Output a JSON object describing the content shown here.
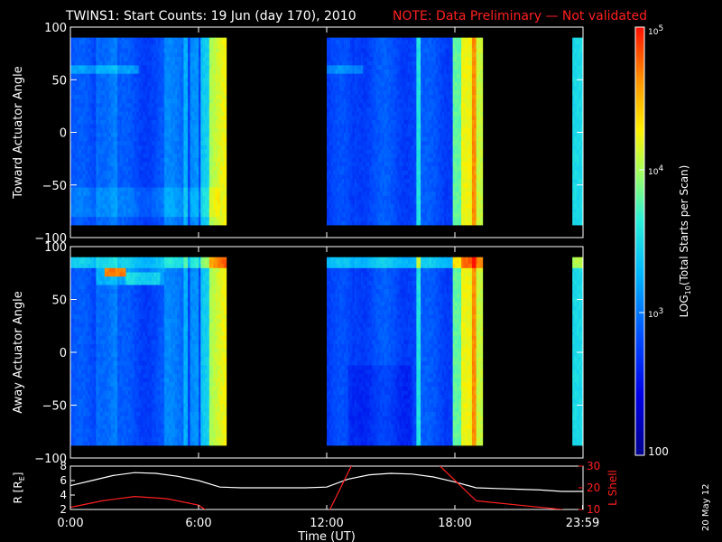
{
  "header": {
    "title": "TWINS1: Start Counts: 19 Jun (day 170), 2010",
    "note": "NOTE: Data Preliminary — Not validated",
    "title_color": "#ffffff",
    "note_color": "#ff2020"
  },
  "side_stamp": "20 May 12",
  "chart_data": [
    {
      "type": "heatmap",
      "name": "toward",
      "ylabel": "Toward Actuator Angle",
      "ylim": [
        -100,
        100
      ],
      "yticks": [
        "100",
        "50",
        "0",
        "−50",
        "−100"
      ],
      "x_unit": "hours UT",
      "xlim": [
        0,
        24
      ],
      "data_coverage_hours": [
        [
          0,
          7.3
        ],
        [
          12,
          19.3
        ],
        [
          23.5,
          24
        ]
      ],
      "angle_range": [
        -88,
        90
      ],
      "colorscale": "rainbow-log"
    },
    {
      "type": "heatmap",
      "name": "away",
      "ylabel": "Away Actuator Angle",
      "ylim": [
        -100,
        100
      ],
      "yticks": [
        "100",
        "50",
        "0",
        "−50",
        "−100"
      ],
      "x_unit": "hours UT",
      "xlim": [
        0,
        24
      ],
      "data_coverage_hours": [
        [
          0,
          7.3
        ],
        [
          12,
          19.3
        ],
        [
          23.5,
          24
        ]
      ],
      "angle_range": [
        -88,
        90
      ],
      "colorscale": "rainbow-log"
    },
    {
      "type": "line",
      "name": "orbit",
      "ylabel_left": "R [R",
      "ylabel_left_sub": "E",
      "ylabel_left_end": "]",
      "ylabel_right": "L Shell",
      "ylim_left": [
        2,
        8
      ],
      "ylim_right": [
        10,
        30
      ],
      "yticks_left": [
        "8",
        "6",
        "4",
        "2"
      ],
      "yticks_right": [
        "30",
        "20",
        "10"
      ],
      "xlim": [
        0,
        24
      ],
      "xtick_labels": [
        "0:00",
        "6:00",
        "12:00",
        "18:00",
        "23:59"
      ],
      "xtick_values": [
        0,
        6,
        12,
        18,
        23.98
      ],
      "xlabel": "Time (UT)",
      "series": [
        {
          "color": "#ffffff",
          "x": [
            0,
            1,
            2,
            3,
            4,
            5,
            6,
            7,
            8,
            9,
            10,
            11,
            12,
            13,
            14,
            15,
            16,
            17,
            18,
            19,
            20,
            21,
            22,
            23,
            24
          ],
          "values": [
            5.3,
            6.0,
            6.7,
            7.1,
            7.0,
            6.6,
            6.0,
            5.1,
            5.0,
            5.0,
            5.0,
            5.0,
            5.1,
            6.2,
            6.8,
            7.0,
            6.9,
            6.5,
            5.8,
            5.0,
            4.9,
            4.8,
            4.7,
            4.5,
            4.5
          ]
        },
        {
          "color": "#ff2020",
          "x": [
            0,
            1.5,
            3,
            4.5,
            6,
            7.2,
            9,
            12,
            13.2,
            17.2,
            19,
            21,
            23,
            23.6,
            24
          ],
          "values": [
            11,
            14,
            16,
            15,
            12,
            4,
            5,
            7,
            31,
            31,
            14,
            12,
            10,
            8,
            9
          ]
        }
      ]
    },
    {
      "type": "colorbar",
      "name": "colorbar",
      "label_pre": "LOG",
      "label_sub": "10",
      "label_post": "(Total Starts per Scan)",
      "ticks": [
        {
          "base": "10",
          "exp": "5",
          "value": 100000
        },
        {
          "base": "10",
          "exp": "4",
          "value": 10000
        },
        {
          "base": "10",
          "exp": "3",
          "value": 1000
        },
        {
          "text": "100",
          "value": 100
        }
      ],
      "range": [
        100,
        100000
      ]
    }
  ]
}
